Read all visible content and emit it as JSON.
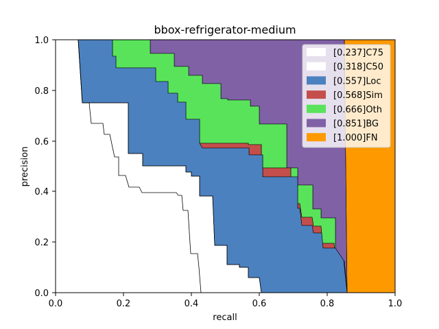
{
  "chart_data": {
    "type": "area",
    "title": "bbox-refrigerator-medium",
    "xlabel": "recall",
    "ylabel": "precision",
    "xlim": [
      0,
      1
    ],
    "ylim": [
      0,
      1
    ],
    "xticks": [
      "0.0",
      "0.2",
      "0.4",
      "0.6",
      "0.8",
      "1.0"
    ],
    "yticks": [
      "0.0",
      "0.2",
      "0.4",
      "0.6",
      "0.8",
      "1.0"
    ],
    "legend_position": "upper-right",
    "series": [
      {
        "name": "[0.237]C75",
        "color": "#ffffff",
        "points": [
          [
            0,
            1
          ],
          [
            0.07,
            1
          ],
          [
            0.08,
            0.75
          ],
          [
            0.1,
            0.75
          ],
          [
            0.11,
            0.667
          ],
          [
            0.135,
            0.667
          ],
          [
            0.145,
            0.625
          ],
          [
            0.16,
            0.625
          ],
          [
            0.17,
            0.5
          ],
          [
            0.18,
            0.5
          ],
          [
            0.19,
            0.455
          ],
          [
            0.21,
            0.455
          ],
          [
            0.22,
            0.414
          ],
          [
            0.25,
            0.414
          ],
          [
            0.26,
            0.39
          ],
          [
            0.36,
            0.39
          ],
          [
            0.37,
            0.325
          ],
          [
            0.39,
            0.325
          ],
          [
            0.4,
            0.15
          ],
          [
            0.42,
            0.15
          ],
          [
            0.43,
            0
          ]
        ]
      },
      {
        "name": "[0.318]C50",
        "color": "#ffffff",
        "points": [
          [
            0,
            1
          ],
          [
            0.07,
            1
          ],
          [
            0.08,
            0.75
          ],
          [
            0.21,
            0.75
          ],
          [
            0.22,
            0.58
          ],
          [
            0.24,
            0.58
          ],
          [
            0.25,
            0.52
          ],
          [
            0.3,
            0.52
          ],
          [
            0.31,
            0.48
          ],
          [
            0.38,
            0.48
          ],
          [
            0.39,
            0.47
          ],
          [
            0.42,
            0.47
          ],
          [
            0.43,
            0.38
          ],
          [
            0.44,
            0.38
          ],
          [
            0.45,
            0.1
          ],
          [
            0.55,
            0.1
          ],
          [
            0.56,
            0.06
          ],
          [
            0.6,
            0.06
          ],
          [
            0.605,
            0
          ]
        ]
      },
      {
        "name": "[0.557]Loc",
        "color": "#4c81bf",
        "points": [
          [
            0,
            1
          ],
          [
            0.07,
            1
          ],
          [
            0.08,
            0.75
          ],
          [
            0.21,
            0.75
          ],
          [
            0.22,
            0.58
          ],
          [
            0.24,
            0.58
          ],
          [
            0.25,
            0.52
          ],
          [
            0.3,
            0.52
          ],
          [
            0.31,
            0.48
          ],
          [
            0.38,
            0.48
          ],
          [
            0.39,
            0.47
          ],
          [
            0.42,
            0.47
          ],
          [
            0.43,
            0.38
          ],
          [
            0.44,
            0.38
          ],
          [
            0.45,
            0.1
          ],
          [
            0.55,
            0.1
          ],
          [
            0.56,
            0.06
          ],
          [
            0.6,
            0.06
          ],
          [
            0.605,
            0
          ]
        ]
      },
      {
        "name": "[0.568]Sim",
        "color": "#c44e4c",
        "points": [
          [
            0.605,
            0
          ],
          [
            0.85,
            0
          ],
          [
            0.84,
            0.1
          ],
          [
            0.82,
            0.155
          ],
          [
            0.78,
            0.22
          ],
          [
            0.75,
            0.3
          ],
          [
            0.72,
            0.35
          ],
          [
            0.68,
            0.45
          ],
          [
            0.6,
            0.5
          ],
          [
            0.58,
            0.56
          ],
          [
            0.42,
            0.57
          ],
          [
            0.3,
            0.6
          ],
          [
            0.24,
            0.64
          ]
        ]
      },
      {
        "name": "[0.666]Oth",
        "color": "#59e35b",
        "points": [
          [
            0.17,
            1
          ],
          [
            0.2,
            0.97
          ],
          [
            0.4,
            0.78
          ],
          [
            0.6,
            0.67
          ],
          [
            0.72,
            0.49
          ],
          [
            0.8,
            0.34
          ],
          [
            0.86,
            0.12
          ]
        ]
      },
      {
        "name": "[0.851]BG",
        "color": "#8061a6",
        "points": [
          [
            0.28,
            1
          ],
          [
            0.5,
            0.78
          ],
          [
            0.7,
            0.6
          ],
          [
            0.84,
            0.35
          ],
          [
            0.855,
            0
          ]
        ]
      },
      {
        "name": "[1.000]FN",
        "color": "#fe9900",
        "points": [
          [
            0.85,
            1
          ],
          [
            1,
            1
          ],
          [
            1,
            0
          ],
          [
            0.86,
            0
          ]
        ]
      }
    ]
  }
}
